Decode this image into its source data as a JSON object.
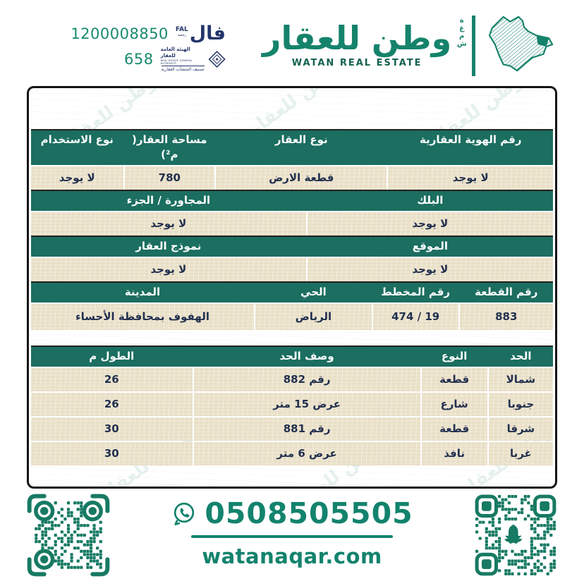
{
  "colors": {
    "teal_header": "#1b6e60",
    "brand_green": "#15836b",
    "footer_green": "#13836d",
    "navy": "#24356b",
    "cell_beige": "#ece3cc",
    "value_text": "#22304f"
  },
  "header": {
    "fal_number": "1200008850",
    "fal_word": "فال",
    "fal_en": "FAL",
    "fal_sub": "رخصة",
    "auth_number": "658",
    "auth_line1": "الهيئة العامة للعقار",
    "auth_line2": "REAL ESTATE GENERAL AUTHORITY",
    "auth_line3": "تصنيف المنشآت العقارية",
    "brand_ar": "وطن للعقار",
    "brand_en": "WATAN REAL ESTATE",
    "brand_vertical": "شمعة"
  },
  "sections": [
    {
      "headers": [
        "رقم الهوية العقارية",
        "نوع العقار",
        "مساحة العقار( م²)",
        "نوع الاستخدام"
      ],
      "values": [
        "لا يوجد",
        "قطعة الارض",
        "780",
        "لا يوجد"
      ]
    },
    {
      "headers": [
        "البلك",
        "المجاورة / الجزء"
      ],
      "values": [
        "لا يوجد",
        "لا يوجد"
      ]
    },
    {
      "headers": [
        "الموقع",
        "نموذج العقار"
      ],
      "values": [
        "لا يوجد",
        "لا يوجد"
      ]
    },
    {
      "headers": [
        "رقم القطعة",
        "رقم المخطط",
        "الحي",
        "المدينة"
      ],
      "values": [
        "883",
        "474 / 19",
        "الرياض",
        "الهفوف بمحافظة الأحساء"
      ]
    }
  ],
  "boundaries": {
    "headers": [
      "الحد",
      "النوع",
      "وصف الحد",
      "الطول م"
    ],
    "rows": [
      [
        "شمالا",
        "قطعة",
        "رقم 882",
        "26"
      ],
      [
        "جنوبا",
        "شارع",
        "عرض 15 متر",
        "26"
      ],
      [
        "شرقا",
        "قطعة",
        "رقم 881",
        "30"
      ],
      [
        "غربا",
        "نافذ",
        "عرض 6 متر",
        "30"
      ]
    ]
  },
  "footer": {
    "phone": "0508505505",
    "website": "watanaqar.com"
  },
  "watermark": {
    "text": "وطن للعقار"
  }
}
